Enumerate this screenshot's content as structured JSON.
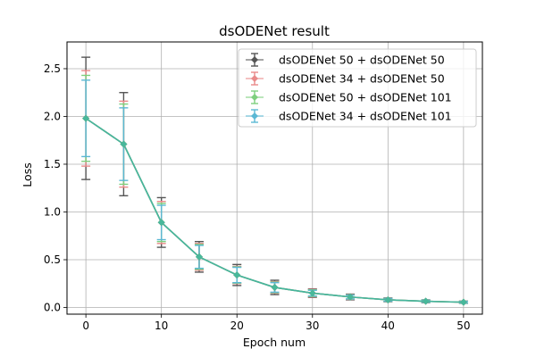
{
  "chart_data": {
    "type": "line",
    "title": "dsODENet result",
    "xlabel": "Epoch num",
    "ylabel": "Loss",
    "xlim": [
      -2.5,
      52.5
    ],
    "ylim": [
      -0.07,
      2.78
    ],
    "x_ticks": [
      0,
      10,
      20,
      30,
      40,
      50
    ],
    "y_ticks": [
      0.0,
      0.5,
      1.0,
      1.5,
      2.0,
      2.5
    ],
    "x_tick_labels": [
      "0",
      "10",
      "20",
      "30",
      "40",
      "50"
    ],
    "y_tick_labels": [
      "0.0",
      "0.5",
      "1.0",
      "1.5",
      "2.0",
      "2.5"
    ],
    "grid": true,
    "legend_position": "top-right",
    "error_bars": true,
    "x": [
      0,
      5,
      10,
      15,
      20,
      25,
      30,
      35,
      40,
      45,
      50
    ],
    "series": [
      {
        "name": "dsODENet 50 + dsODENet 50",
        "color": "#555555",
        "marker": "diamond",
        "values": [
          1.98,
          1.71,
          0.89,
          0.53,
          0.34,
          0.21,
          0.15,
          0.11,
          0.08,
          0.065,
          0.055
        ],
        "errors": [
          0.64,
          0.54,
          0.26,
          0.16,
          0.11,
          0.075,
          0.045,
          0.03,
          0.02,
          0.015,
          0.012
        ]
      },
      {
        "name": "dsODENet 34 + dsODENet 50",
        "color": "#e98a8a",
        "marker": "diamond",
        "values": [
          1.98,
          1.71,
          0.89,
          0.53,
          0.34,
          0.21,
          0.15,
          0.11,
          0.08,
          0.065,
          0.055
        ],
        "errors": [
          0.5,
          0.45,
          0.22,
          0.14,
          0.09,
          0.06,
          0.04,
          0.025,
          0.018,
          0.013,
          0.01
        ]
      },
      {
        "name": "dsODENet 50 + dsODENet 101",
        "color": "#7ecf7e",
        "marker": "diamond",
        "values": [
          1.98,
          1.71,
          0.89,
          0.53,
          0.34,
          0.21,
          0.15,
          0.11,
          0.08,
          0.065,
          0.055
        ],
        "errors": [
          0.45,
          0.42,
          0.2,
          0.13,
          0.085,
          0.055,
          0.035,
          0.022,
          0.016,
          0.012,
          0.01
        ]
      },
      {
        "name": "dsODENet 34 + dsODENet 101",
        "color": "#5bb8d4",
        "marker": "diamond",
        "values": [
          1.98,
          1.71,
          0.89,
          0.53,
          0.34,
          0.21,
          0.15,
          0.11,
          0.08,
          0.065,
          0.055
        ],
        "errors": [
          0.4,
          0.38,
          0.18,
          0.12,
          0.08,
          0.05,
          0.03,
          0.02,
          0.015,
          0.011,
          0.009
        ]
      }
    ],
    "overlay_color": "#3cb6a0"
  }
}
